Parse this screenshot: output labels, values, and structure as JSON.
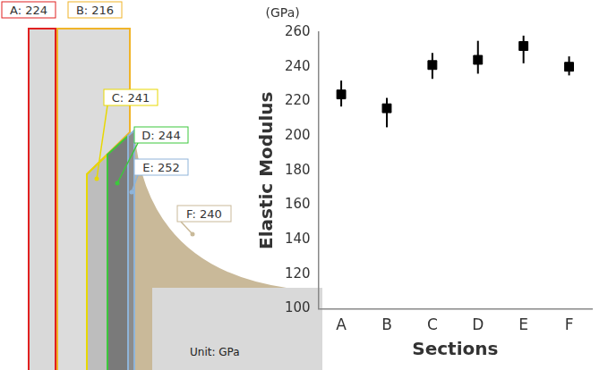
{
  "diagram": {
    "sections": [
      {
        "label": "A: 224"
      },
      {
        "label": "B: 216"
      },
      {
        "label": "C: 241"
      },
      {
        "label": "D: 244"
      },
      {
        "label": "E: 252"
      },
      {
        "label": "F: 240"
      }
    ],
    "unit": "Unit: GPa"
  },
  "chart_data": {
    "type": "scatter",
    "annotation": "(GPa)",
    "ylabel": "Elastic Modulus",
    "xlabel": "Sections",
    "categories": [
      "A",
      "B",
      "C",
      "D",
      "E",
      "F"
    ],
    "values": [
      224,
      216,
      241,
      244,
      252,
      240
    ],
    "error_min": [
      217,
      205,
      233,
      236,
      242,
      235
    ],
    "error_max": [
      232,
      222,
      248,
      255,
      258,
      246
    ],
    "color": "#000000",
    "marker": "square",
    "ylim": [
      100,
      260
    ],
    "yticks": [
      100,
      120,
      140,
      160,
      180,
      200,
      220,
      240,
      260
    ],
    "grid": false
  }
}
